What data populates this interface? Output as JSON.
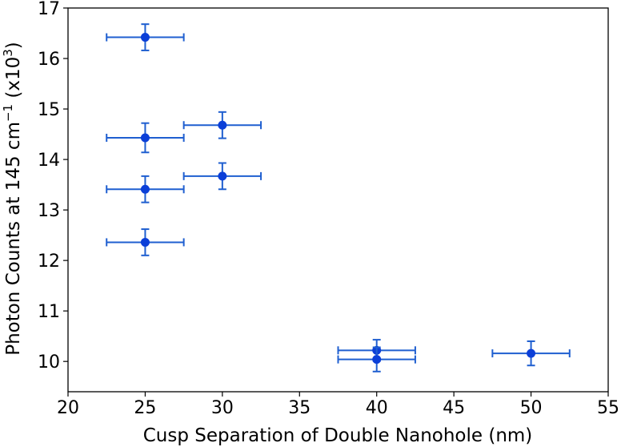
{
  "chart_data": {
    "type": "scatter",
    "xlabel": "Cusp Separation of Double Nanohole (nm)",
    "ylabel_parts": {
      "main": "Photon Counts at 145 cm",
      "main_sup": "−1",
      "mid": " (x10",
      "mid_sup": "3",
      "end": ")"
    },
    "xlim": [
      20,
      55
    ],
    "ylim": [
      9.4,
      17
    ],
    "xticks": [
      "20",
      "25",
      "30",
      "35",
      "40",
      "45",
      "50",
      "55"
    ],
    "yticks": [
      "10",
      "11",
      "12",
      "13",
      "14",
      "15",
      "16",
      "17"
    ],
    "xtick_values": [
      20,
      25,
      30,
      35,
      40,
      45,
      50,
      55
    ],
    "ytick_values": [
      10,
      11,
      12,
      13,
      14,
      15,
      16,
      17
    ],
    "marker_color": "#0b3fd8",
    "errorbar_color": "#1f5fd0",
    "grid": false,
    "points": [
      {
        "x": 25,
        "y": 16.42,
        "xerr": 2.5,
        "yerr": 0.26
      },
      {
        "x": 25,
        "y": 14.43,
        "xerr": 2.5,
        "yerr": 0.29
      },
      {
        "x": 25,
        "y": 13.41,
        "xerr": 2.5,
        "yerr": 0.26
      },
      {
        "x": 25,
        "y": 12.36,
        "xerr": 2.5,
        "yerr": 0.26
      },
      {
        "x": 30,
        "y": 14.68,
        "xerr": 2.5,
        "yerr": 0.26
      },
      {
        "x": 30,
        "y": 13.67,
        "xerr": 2.5,
        "yerr": 0.26
      },
      {
        "x": 40,
        "y": 10.22,
        "xerr": 2.5,
        "yerr": 0.21
      },
      {
        "x": 40,
        "y": 10.04,
        "xerr": 2.5,
        "yerr": 0.24
      },
      {
        "x": 50,
        "y": 10.16,
        "xerr": 2.5,
        "yerr": 0.24
      }
    ]
  }
}
